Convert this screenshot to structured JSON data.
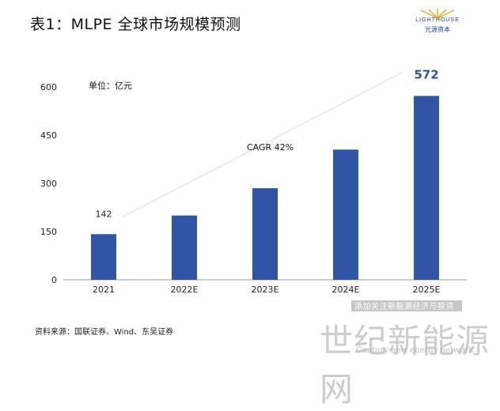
{
  "header": {
    "title": "表1：MLPE 全球市场规模预测"
  },
  "logo": {
    "top_text": "LIGHTHOUSE",
    "bottom_text": "光源资本",
    "color": "#1f3f8f"
  },
  "chart_data": {
    "type": "bar",
    "categories": [
      "2021",
      "2022E",
      "2023E",
      "2024E",
      "2025E"
    ],
    "values": [
      142,
      200,
      285,
      405,
      572
    ],
    "data_labels": [
      "142",
      "",
      "",
      "",
      "572"
    ],
    "ylim": [
      0,
      600
    ],
    "yticks": [
      "0",
      "150",
      "300",
      "450",
      "600"
    ],
    "unit_label": "单位：亿元",
    "annotation": "CAGR 42%",
    "bar_color": "#2f55a4",
    "grid": false,
    "legend": "none"
  },
  "footer": {
    "source": "资料来源：国联证券、Wind、东吴证券"
  },
  "watermark": {
    "banner": "添加关注新能源经济与投资",
    "main": "世纪新能源网",
    "sub": "Century new energy network"
  }
}
